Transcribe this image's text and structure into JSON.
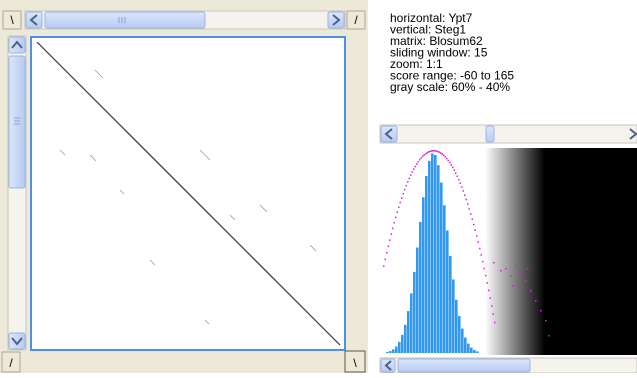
{
  "corner_buttons": {
    "top_left": "\\",
    "top_right": "/",
    "bottom_left": "/",
    "bottom_right": "\\"
  },
  "info": {
    "lines": [
      "horizontal: Ypt7",
      "vertical: Steg1",
      "matrix: Blosum62",
      "sliding window: 15",
      "zoom: 1:1",
      "score range: -60 to 165",
      "gray scale: 60% - 40%"
    ]
  }
}
